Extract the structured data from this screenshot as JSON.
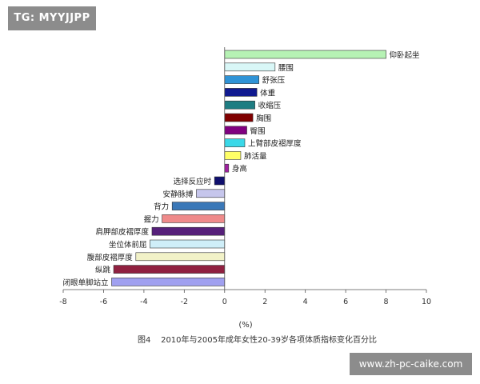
{
  "watermark_top": "TG: MYYJJPP",
  "watermark_bottom": "www.zh-pc-caike.com",
  "chart_data": {
    "type": "bar",
    "orientation": "horizontal",
    "categories": [
      "仰卧起坐",
      "腰围",
      "舒张压",
      "体重",
      "收缩压",
      "胸围",
      "臀围",
      "上臂部皮褶厚度",
      "肺活量",
      "身高",
      "选择反应时",
      "安静脉搏",
      "背力",
      "握力",
      "肩胛部皮褶厚度",
      "坐位体前屈",
      "腹部皮褶厚度",
      "纵跳",
      "闭眼单脚站立"
    ],
    "values": [
      8.0,
      2.5,
      1.7,
      1.6,
      1.5,
      1.4,
      1.1,
      1.0,
      0.8,
      0.2,
      -0.5,
      -1.4,
      -2.6,
      -3.1,
      -3.6,
      -3.7,
      -4.4,
      -5.5,
      -5.6
    ],
    "colors": [
      "#b6f2b4",
      "#d9f7f7",
      "#2f93d6",
      "#101a90",
      "#1e7d82",
      "#800000",
      "#800080",
      "#3ad8e8",
      "#ffff66",
      "#a020a0",
      "#10106e",
      "#c6c6ec",
      "#3a78b8",
      "#ef8a8a",
      "#56207a",
      "#cfeef8",
      "#f2f2c8",
      "#902040",
      "#a0a0f0"
    ],
    "xlim": [
      -8,
      10
    ],
    "xticks": [
      -8,
      -6,
      -4,
      -2,
      0,
      2,
      4,
      6,
      8,
      10
    ],
    "xlabel": "(%)",
    "title": "图4    2010年与2005年成年女性20-39岁各项体质指标变化百分比",
    "grid": false
  }
}
